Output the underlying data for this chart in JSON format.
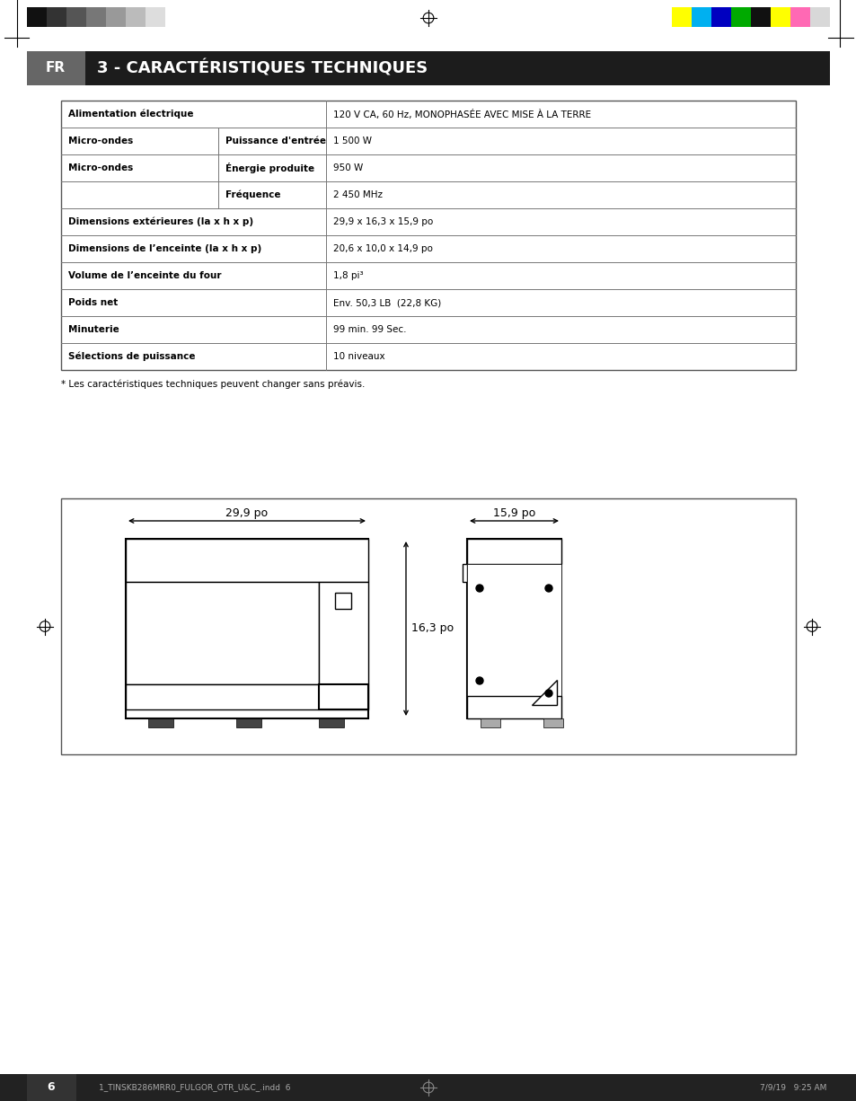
{
  "page_bg": "#ffffff",
  "header_bg": "#1c1c1c",
  "header_fr_bg": "#666666",
  "header_fr_text": "FR",
  "header_title": "3 - CARACTÉRISTIQUES TECHNIQUES",
  "header_text_color": "#ffffff",
  "table_rows": [
    {
      "col1": "Alimentation électrique",
      "col2": "",
      "col3": "120 V CA, 60 Hz, MONOPHASÉE AVEC MISE À LA TERRE",
      "type": "span"
    },
    {
      "col1": "Micro-ondes",
      "col2": "Puissance d'entrée",
      "col3": "1 500 W",
      "type": "three"
    },
    {
      "col1": "",
      "col2": "Énergie produite",
      "col3": "950 W",
      "type": "three"
    },
    {
      "col1": "",
      "col2": "Fréquence",
      "col3": "2 450 MHz",
      "type": "three"
    },
    {
      "col1": "Dimensions extérieures (la x h x p)",
      "col2": "",
      "col3": "29,9 x 16,3 x 15,9 po",
      "type": "span"
    },
    {
      "col1": "Dimensions de l’enceinte (la x h x p)",
      "col2": "",
      "col3": "20,6 x 10,0 x 14,9 po",
      "type": "span"
    },
    {
      "col1": "Volume de l’enceinte du four",
      "col2": "",
      "col3": "1,8 pi³",
      "type": "span"
    },
    {
      "col1": "Poids net",
      "col2": "",
      "col3": "Env. 50,3 LB  (22,8 KG)",
      "type": "span"
    },
    {
      "col1": "Minuterie",
      "col2": "",
      "col3": "99 min. 99 Sec.",
      "type": "span"
    },
    {
      "col1": "Sélections de puissance",
      "col2": "",
      "col3": "10 niveaux",
      "type": "span"
    }
  ],
  "footnote": "* Les caractéristiques techniques peuvent changer sans préavis.",
  "diagram_label_width": "29,9 po",
  "diagram_label_height": "16,3 po",
  "diagram_label_depth": "15,9 po",
  "color_bars_left": [
    "#111111",
    "#333333",
    "#555555",
    "#777777",
    "#999999",
    "#bbbbbb",
    "#dddddd"
  ],
  "color_bars_right": [
    "#ffff00",
    "#00b0f0",
    "#0000c0",
    "#00aa00",
    "#111111",
    "#ffff00",
    "#ff69b4",
    "#d8d8d8"
  ],
  "footer_bg": "#222222",
  "footer_page": "6",
  "footer_left_text": "1_TINSKB286MRR0_FULGOR_OTR_U&C_.indd  6",
  "footer_right_text": "7/9/19   9:25 AM"
}
